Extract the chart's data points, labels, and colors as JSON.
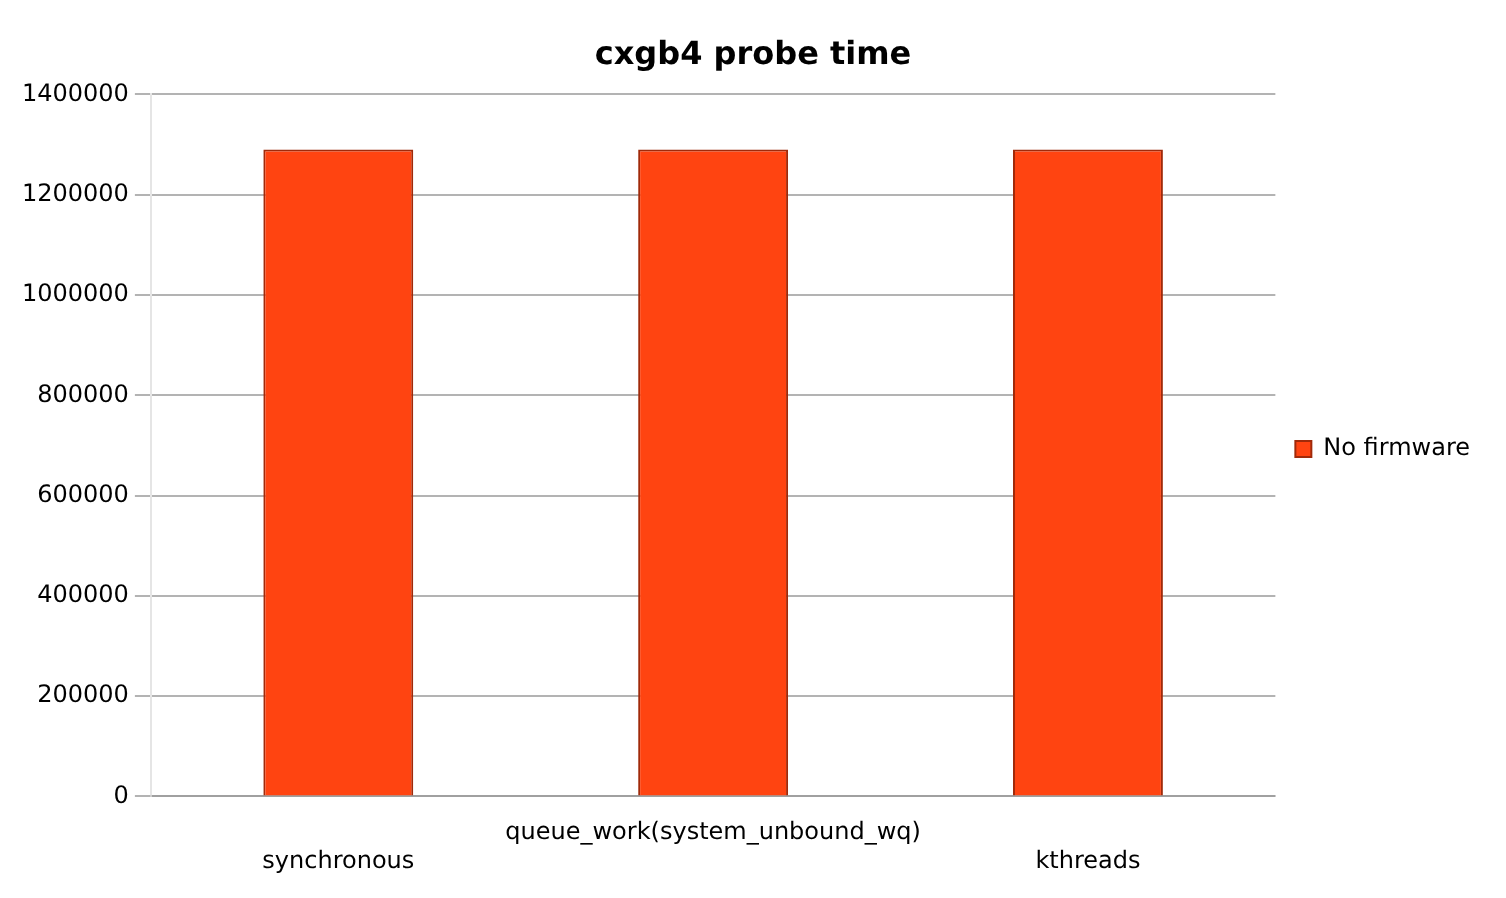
{
  "chart_data": {
    "type": "bar",
    "title": "cxgb4 probe time",
    "categories": [
      "synchronous",
      "queue_work(system_unbound_wq)",
      "kthreads"
    ],
    "series": [
      {
        "name": "No firmware",
        "color": "#ff4411",
        "values": [
          1290000,
          1290000,
          1290000
        ]
      }
    ],
    "ylim": [
      0,
      1400000
    ],
    "yticks": [
      0,
      200000,
      400000,
      600000,
      800000,
      1000000,
      1200000,
      1400000
    ],
    "grid": "y",
    "legend": "right"
  }
}
